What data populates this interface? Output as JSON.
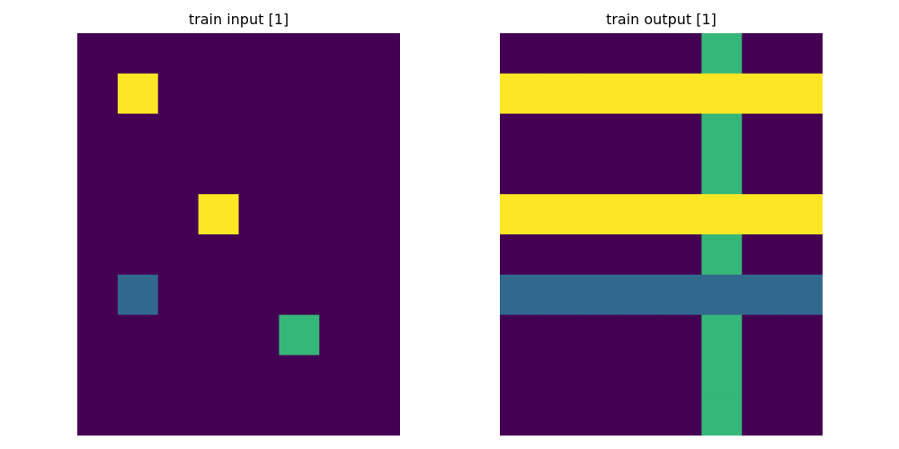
{
  "colors": {
    "0": "#440154",
    "4": "#31688e",
    "6": "#35b779",
    "9": "#fde725"
  },
  "panels": [
    {
      "title": "train input [1]",
      "grid": [
        [
          0,
          0,
          0,
          0,
          0,
          0,
          0,
          0
        ],
        [
          0,
          9,
          0,
          0,
          0,
          0,
          0,
          0
        ],
        [
          0,
          0,
          0,
          0,
          0,
          0,
          0,
          0
        ],
        [
          0,
          0,
          0,
          0,
          0,
          0,
          0,
          0
        ],
        [
          0,
          0,
          0,
          9,
          0,
          0,
          0,
          0
        ],
        [
          0,
          0,
          0,
          0,
          0,
          0,
          0,
          0
        ],
        [
          0,
          4,
          0,
          0,
          0,
          0,
          0,
          0
        ],
        [
          0,
          0,
          0,
          0,
          0,
          6,
          0,
          0
        ],
        [
          0,
          0,
          0,
          0,
          0,
          0,
          0,
          0
        ],
        [
          0,
          0,
          0,
          0,
          0,
          0,
          0,
          0
        ]
      ]
    },
    {
      "title": "train output [1]",
      "grid": [
        [
          0,
          0,
          0,
          0,
          0,
          6,
          0,
          0
        ],
        [
          9,
          9,
          9,
          9,
          9,
          9,
          9,
          9
        ],
        [
          0,
          0,
          0,
          0,
          0,
          6,
          0,
          0
        ],
        [
          0,
          0,
          0,
          0,
          0,
          6,
          0,
          0
        ],
        [
          9,
          9,
          9,
          9,
          9,
          9,
          9,
          9
        ],
        [
          0,
          0,
          0,
          0,
          0,
          6,
          0,
          0
        ],
        [
          4,
          4,
          4,
          4,
          4,
          4,
          4,
          4
        ],
        [
          0,
          0,
          0,
          0,
          0,
          6,
          0,
          0
        ],
        [
          0,
          0,
          0,
          0,
          0,
          6,
          0,
          0
        ],
        [
          0,
          0,
          0,
          0,
          0,
          6,
          0,
          0
        ]
      ]
    }
  ]
}
